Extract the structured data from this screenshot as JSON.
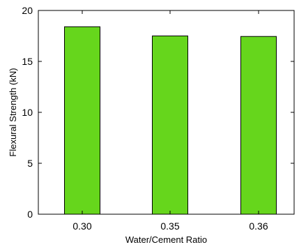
{
  "chart_data": {
    "type": "bar",
    "categories": [
      "0.30",
      "0.35",
      "0.36"
    ],
    "values": [
      18.4,
      17.5,
      17.45
    ],
    "xlabel": "Water/Cement Ratio",
    "ylabel": "Flexural Strength (kN)",
    "ylim": [
      0,
      20
    ],
    "yticks": [
      0,
      5,
      10,
      15,
      20
    ],
    "grid": false,
    "bar_color": "#66d61c",
    "bar_edge_color": "#000000"
  }
}
